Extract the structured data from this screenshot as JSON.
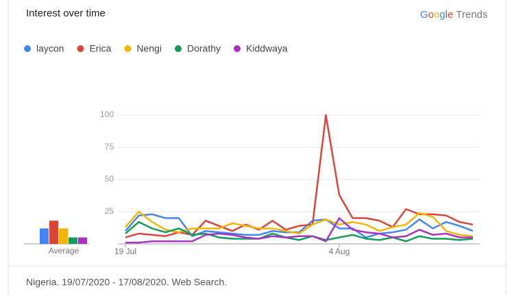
{
  "header": {
    "title": "Interest over time",
    "logo": "Google",
    "logo_suffix": "Trends"
  },
  "chart_data": {
    "type": "line",
    "categories": [
      "19 Jul",
      null,
      null,
      null,
      null,
      null,
      null,
      null,
      null,
      null,
      null,
      null,
      null,
      null,
      null,
      null,
      "4 Aug",
      null,
      null,
      null,
      null,
      null,
      null,
      null,
      null,
      null,
      null
    ],
    "series": [
      {
        "name": "laycon",
        "color": "#4285f4",
        "values": [
          10,
          22,
          23,
          20,
          20,
          6,
          10,
          9,
          8,
          7,
          7,
          10,
          9,
          9,
          18,
          19,
          12,
          12,
          5,
          8,
          9,
          11,
          19,
          12,
          17,
          14,
          10
        ]
      },
      {
        "name": "Erica",
        "color": "#db4437",
        "values": [
          5,
          8,
          7,
          6,
          9,
          7,
          18,
          14,
          10,
          15,
          11,
          18,
          11,
          14,
          15,
          100,
          38,
          20,
          20,
          18,
          13,
          27,
          23,
          23,
          22,
          17,
          15
        ]
      },
      {
        "name": "Nengi",
        "color": "#f4b400",
        "values": [
          13,
          25,
          17,
          11,
          9,
          12,
          12,
          12,
          16,
          14,
          12,
          12,
          10,
          8,
          15,
          19,
          15,
          17,
          15,
          10,
          13,
          15,
          24,
          21,
          10,
          7,
          6
        ]
      },
      {
        "name": "Dorathy",
        "color": "#0f9d58",
        "values": [
          8,
          17,
          12,
          9,
          12,
          7,
          8,
          5,
          4,
          4,
          4,
          8,
          5,
          3,
          6,
          3,
          5,
          7,
          4,
          3,
          5,
          2,
          6,
          4,
          4,
          3,
          4
        ]
      },
      {
        "name": "Kiddwaya",
        "color": "#ab30c4",
        "values": [
          1,
          1,
          2,
          2,
          2,
          2,
          7,
          8,
          7,
          5,
          4,
          6,
          5,
          6,
          6,
          2,
          20,
          11,
          9,
          8,
          5,
          6,
          11,
          7,
          8,
          5,
          5
        ]
      }
    ],
    "averages": {
      "label": "Average",
      "values": [
        12,
        18,
        12,
        5,
        5
      ]
    },
    "ylim": [
      0,
      100
    ],
    "yticks": [
      25,
      50,
      75,
      100
    ],
    "grid": true
  },
  "footer": "Nigeria. 19/07/2020 - 17/08/2020. Web Search."
}
